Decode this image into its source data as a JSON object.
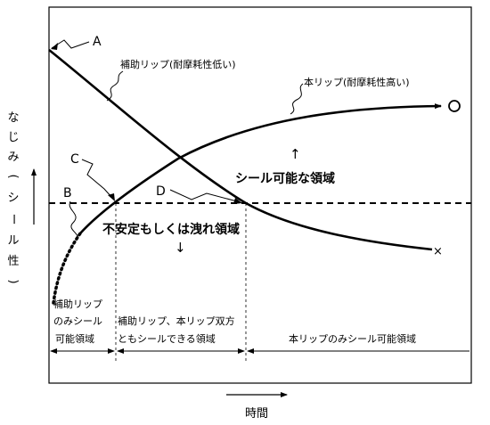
{
  "labels": {
    "A": "A",
    "B": "B",
    "C": "C",
    "D": "D",
    "aux_lip": "補助リップ(耐摩耗性低い)",
    "main_lip": "本リップ(耐摩耗性高い)",
    "end_O": "O",
    "end_X": "×",
    "seal_region": "シール可能な領域",
    "unstable_region": "不安定もしくは洩れ領域",
    "region1_line1": "補助リップ",
    "region1_line2": "のみシール",
    "region1_line3": "可能領域",
    "region2_line1": "補助リップ、本リップ双方",
    "region2_line2": "ともシールできる領域",
    "region3": "本リップのみシール可能領域",
    "y_axis_chars": [
      "な",
      "じ",
      "み",
      "(",
      "シ",
      "ー",
      "ル",
      "性",
      ")"
    ],
    "x_axis": "時間",
    "arrow_up": "↑",
    "arrow_down": "↓"
  }
}
